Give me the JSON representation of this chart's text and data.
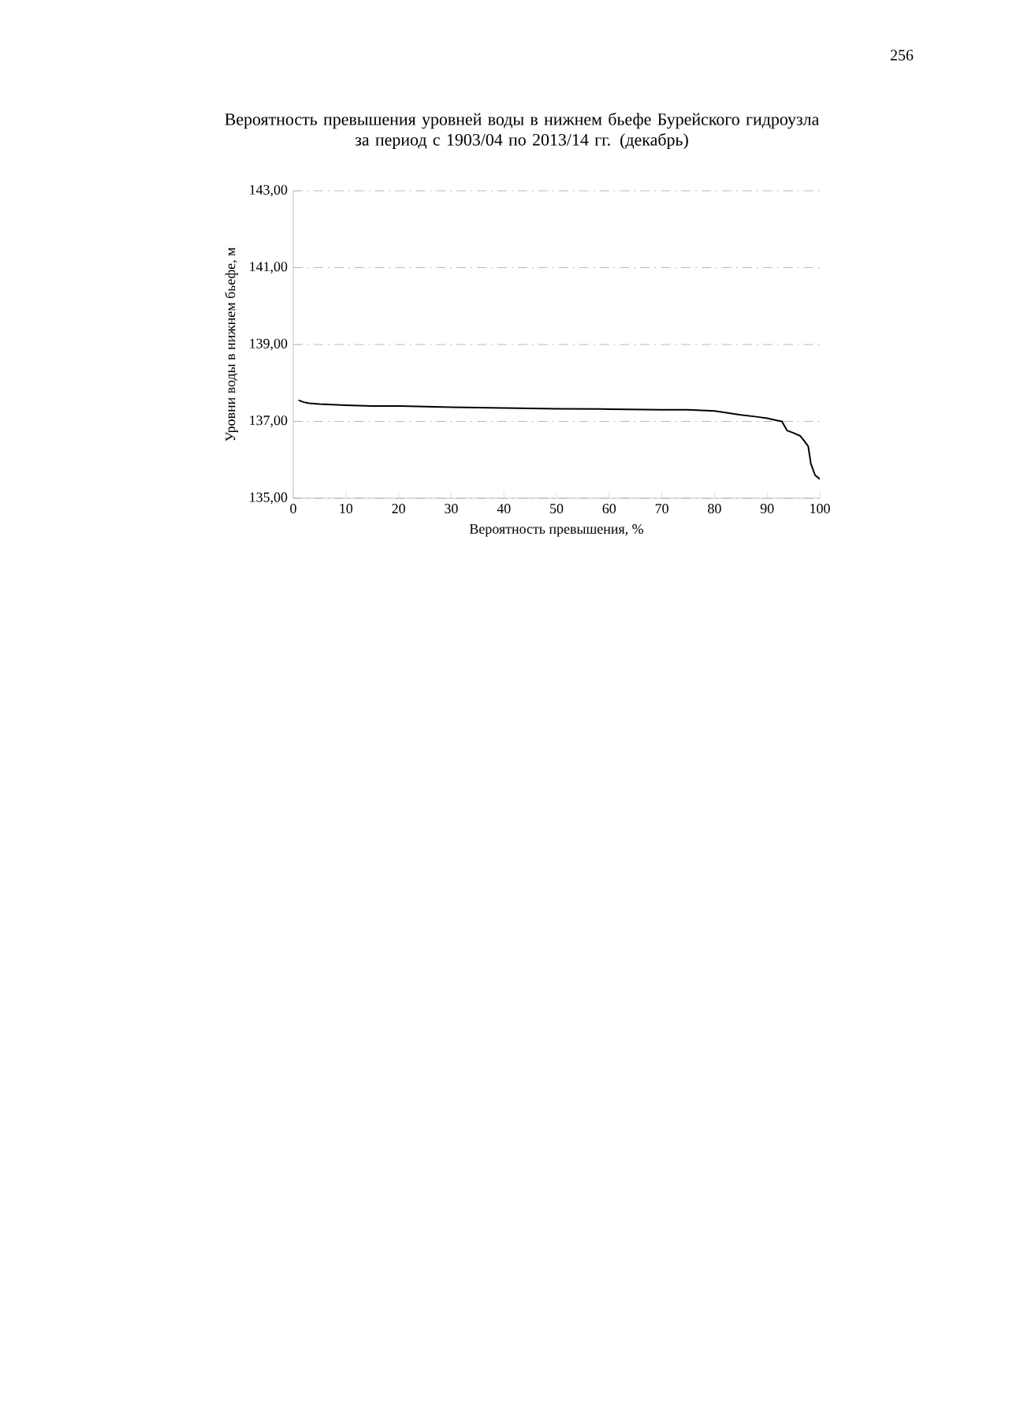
{
  "chart_data": {
    "type": "line",
    "title": "Вероятность превышения уровней воды в нижнем бьефе Бурейского гидроузла\nза период с 1903/04 по 2013/14 гг. (декабрь)",
    "xlabel": "Вероятность превышения, %",
    "ylabel": "Уровни воды в нижнем бьефе, м",
    "annotations": [
      "256"
    ],
    "x": [
      1,
      2,
      3,
      5,
      10,
      15,
      20,
      30,
      40,
      50,
      60,
      70,
      75,
      80,
      85,
      88,
      90,
      92,
      92.8,
      93.8,
      95,
      96.3,
      97,
      97.8,
      98.3,
      99.1,
      100
    ],
    "series": [
      {
        "color": "#000000",
        "values": [
          137.55,
          137.5,
          137.47,
          137.45,
          137.42,
          137.4,
          137.4,
          137.37,
          137.35,
          137.33,
          137.32,
          137.3,
          137.3,
          137.27,
          137.17,
          137.12,
          137.08,
          137.02,
          137.0,
          136.76,
          136.7,
          136.62,
          136.5,
          136.35,
          135.9,
          135.6,
          135.5
        ]
      }
    ],
    "xlim": [
      0,
      100
    ],
    "xticks": [
      0,
      10,
      20,
      30,
      40,
      50,
      60,
      70,
      80,
      90,
      100
    ],
    "ylim": [
      135,
      143
    ],
    "yticks": [
      {
        "value": 135,
        "label": "135,00"
      },
      {
        "value": 137,
        "label": "137,00"
      },
      {
        "value": 139,
        "label": "139,00"
      },
      {
        "value": 141,
        "label": "141,00"
      },
      {
        "value": 143,
        "label": "143,00"
      }
    ],
    "grid": "y",
    "marker": "none",
    "line_style": "solid"
  }
}
